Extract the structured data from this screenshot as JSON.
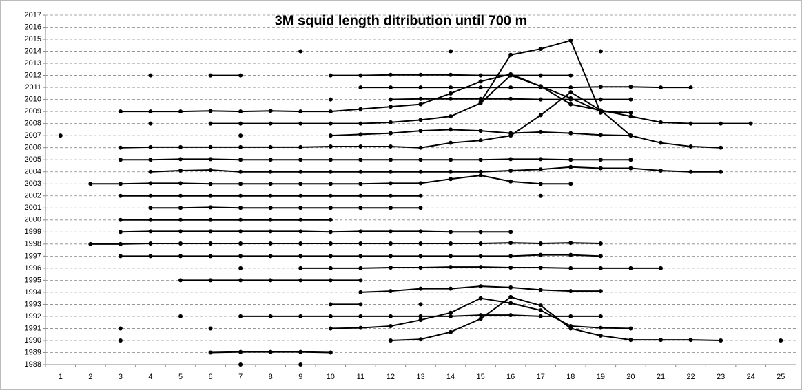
{
  "chart_data": {
    "type": "line",
    "title": "3M squid length ditribution until 700 m",
    "categories": [
      1,
      2,
      3,
      4,
      5,
      6,
      7,
      8,
      9,
      10,
      11,
      12,
      13,
      14,
      15,
      16,
      17,
      18,
      19,
      20,
      21,
      22,
      23,
      24,
      25
    ],
    "color": "#000000",
    "grid": true,
    "ylim": [
      1988,
      2017
    ],
    "yticks": [
      1988,
      1989,
      1990,
      1991,
      1992,
      1993,
      1994,
      1995,
      1996,
      1997,
      1998,
      1999,
      2000,
      2001,
      2002,
      2003,
      2004,
      2005,
      2006,
      2007,
      2008,
      2009,
      2010,
      2011,
      2012,
      2013,
      2014,
      2015,
      2016,
      2017
    ],
    "series": [
      {
        "values": [
          null,
          null,
          null,
          null,
          null,
          null,
          1988,
          null,
          1988,
          null,
          null,
          null,
          null,
          null,
          null,
          null,
          null,
          null,
          null,
          null,
          null,
          null,
          null,
          null,
          null
        ]
      },
      {
        "values": [
          null,
          null,
          null,
          null,
          null,
          1989,
          1989.05,
          1989.05,
          1989.05,
          1989,
          null,
          null,
          null,
          null,
          null,
          null,
          null,
          null,
          null,
          null,
          null,
          null,
          null,
          null,
          null
        ]
      },
      {
        "values": [
          null,
          null,
          1990,
          null,
          null,
          null,
          null,
          null,
          null,
          null,
          null,
          1990,
          1990.1,
          1990.7,
          1991.8,
          1993.6,
          1992.9,
          1991,
          1990.4,
          1990.05,
          1990.05,
          1990.05,
          1990,
          null,
          1990
        ]
      },
      {
        "values": [
          null,
          null,
          1991,
          null,
          null,
          1991,
          null,
          null,
          null,
          1991,
          1991.05,
          1991.2,
          1991.7,
          1992.3,
          1993.5,
          1993.1,
          1992.5,
          1991.2,
          1991.05,
          1991,
          null,
          null,
          null,
          null,
          null
        ]
      },
      {
        "values": [
          null,
          null,
          null,
          null,
          1992,
          null,
          1992,
          1992,
          1992,
          1992,
          1992,
          1992,
          1992,
          1992,
          1992.1,
          1992.1,
          1992,
          1992,
          1992,
          null,
          null,
          null,
          null,
          null,
          null
        ]
      },
      {
        "values": [
          null,
          null,
          null,
          null,
          null,
          null,
          null,
          null,
          null,
          1993,
          1993,
          null,
          1993,
          null,
          null,
          null,
          null,
          null,
          null,
          null,
          null,
          null,
          null,
          null,
          null
        ]
      },
      {
        "values": [
          null,
          null,
          null,
          null,
          null,
          null,
          null,
          null,
          null,
          null,
          1994,
          1994.1,
          1994.3,
          1994.3,
          1994.5,
          1994.4,
          1994.2,
          1994.1,
          1994.1,
          null,
          null,
          null,
          null,
          null,
          null
        ]
      },
      {
        "values": [
          null,
          null,
          null,
          null,
          1995,
          1995,
          1995,
          1995,
          1995,
          1995,
          1995,
          null,
          null,
          null,
          null,
          null,
          null,
          null,
          null,
          null,
          null,
          null,
          null,
          null,
          null
        ]
      },
      {
        "values": [
          null,
          null,
          null,
          null,
          null,
          null,
          1996,
          null,
          1996,
          1996,
          1996,
          1996.05,
          1996.05,
          1996.1,
          1996.1,
          1996.05,
          1996.05,
          1996,
          1996,
          1996,
          1996,
          null,
          null,
          null,
          null
        ]
      },
      {
        "values": [
          null,
          null,
          1997,
          1997,
          1997,
          1997,
          1997,
          1997,
          1997,
          1997,
          1997,
          1997,
          1997,
          1997,
          1997,
          1997,
          1997.1,
          1997.1,
          1997,
          null,
          null,
          null,
          null,
          null,
          null
        ]
      },
      {
        "values": [
          null,
          1998,
          1998,
          1998.05,
          1998.05,
          1998.05,
          1998.05,
          1998.05,
          1998.05,
          1998.05,
          1998.05,
          1998.05,
          1998.05,
          1998.05,
          1998.05,
          1998.1,
          1998.05,
          1998.1,
          1998.05,
          null,
          null,
          null,
          null,
          null,
          null
        ]
      },
      {
        "values": [
          null,
          null,
          1999,
          1999.05,
          1999.05,
          1999.05,
          1999.05,
          1999.05,
          1999.05,
          1999,
          1999.05,
          1999.05,
          1999.05,
          1999,
          1999,
          1999,
          null,
          null,
          null,
          null,
          null,
          null,
          null,
          null,
          null
        ]
      },
      {
        "values": [
          null,
          null,
          2000,
          2000,
          2000,
          2000,
          2000,
          2000,
          2000,
          2000,
          null,
          null,
          null,
          null,
          null,
          null,
          null,
          null,
          null,
          null,
          null,
          null,
          null,
          null,
          null
        ]
      },
      {
        "values": [
          null,
          null,
          null,
          2001,
          2001,
          2001.05,
          2001,
          2001,
          2001,
          2001,
          2001,
          2001,
          2001,
          null,
          null,
          null,
          null,
          null,
          null,
          null,
          null,
          null,
          null,
          null,
          null
        ]
      },
      {
        "values": [
          null,
          null,
          2002,
          2002,
          2002,
          2002,
          2002,
          2002,
          2002,
          2002,
          2002,
          2002,
          2002,
          null,
          null,
          null,
          2002,
          null,
          null,
          null,
          null,
          null,
          null,
          null,
          null
        ]
      },
      {
        "values": [
          null,
          2003,
          2003,
          2003.05,
          2003.05,
          2003,
          2003,
          2003,
          2003,
          2003,
          2003,
          2003.05,
          2003.05,
          2003.4,
          2003.7,
          2003.2,
          2003,
          2003,
          null,
          null,
          null,
          null,
          null,
          null,
          null
        ]
      },
      {
        "values": [
          null,
          null,
          null,
          2004,
          2004.1,
          2004.15,
          2004,
          2004,
          2004,
          2004,
          2004,
          2004,
          2004,
          2004,
          2004,
          2004.1,
          2004.2,
          2004.4,
          2004.3,
          2004.3,
          2004.1,
          2004,
          2004,
          null,
          null
        ]
      },
      {
        "values": [
          null,
          null,
          2005,
          2005,
          2005.05,
          2005.05,
          2005,
          2005,
          2005,
          2005,
          2005,
          2005,
          2005,
          2005,
          2005,
          2005.05,
          2005.05,
          2005,
          2005,
          2005,
          null,
          null,
          null,
          null,
          null
        ]
      },
      {
        "values": [
          null,
          null,
          2006,
          2006.05,
          2006.05,
          2006.05,
          2006.05,
          2006.05,
          2006.05,
          2006.1,
          2006.1,
          2006.1,
          2006,
          2006.4,
          2006.6,
          2007,
          2008.7,
          2010.6,
          2009.1,
          2007,
          2006.4,
          2006.1,
          2006,
          null,
          null
        ]
      },
      {
        "values": [
          2007,
          null,
          null,
          null,
          null,
          null,
          2007,
          null,
          null,
          2007,
          2007.1,
          2007.2,
          2007.4,
          2007.5,
          2007.4,
          2007.2,
          2007.3,
          2007.2,
          2007.05,
          2007,
          null,
          null,
          null,
          null,
          null
        ]
      },
      {
        "values": [
          null,
          null,
          null,
          2008,
          null,
          2008,
          2008,
          2008,
          2008,
          2008,
          2008,
          2008.1,
          2008.3,
          2008.6,
          2009.7,
          2012,
          2011.1,
          2009.6,
          2009.1,
          2008.6,
          2008.1,
          2008,
          2008,
          2008,
          null
        ]
      },
      {
        "values": [
          null,
          null,
          2009,
          2009,
          2009,
          2009.05,
          2009,
          2009.05,
          2009,
          2009,
          2009.2,
          2009.4,
          2009.6,
          2010.5,
          2011.5,
          2012.1,
          2011.1,
          2010.1,
          2009,
          2008.9,
          null,
          null,
          null,
          null,
          null
        ]
      },
      {
        "values": [
          null,
          null,
          null,
          null,
          null,
          null,
          null,
          null,
          null,
          2010,
          null,
          2010,
          2010.05,
          2010.05,
          2010.05,
          2010.05,
          2010,
          2010,
          2010,
          2010,
          null,
          null,
          null,
          null,
          null
        ]
      },
      {
        "values": [
          null,
          null,
          null,
          null,
          null,
          null,
          null,
          null,
          null,
          null,
          2011,
          2011,
          2011,
          2011,
          2011,
          2011,
          2011,
          2011,
          2011.05,
          2011.05,
          2011,
          2011,
          null,
          null,
          null
        ]
      },
      {
        "values": [
          null,
          null,
          null,
          2012,
          null,
          2012,
          2012,
          null,
          null,
          2012,
          2012,
          2012.05,
          2012.05,
          2012.05,
          2012,
          2012,
          2012,
          2012,
          null,
          null,
          null,
          null,
          null,
          null,
          null
        ]
      },
      {
        "values": [
          null,
          null,
          null,
          null,
          null,
          null,
          null,
          null,
          null,
          null,
          null,
          null,
          null,
          null,
          2009.8,
          2013.7,
          2014.2,
          2014.9,
          2008.9,
          null,
          null,
          null,
          null,
          null,
          null
        ]
      },
      {
        "values": [
          null,
          null,
          null,
          null,
          null,
          null,
          null,
          null,
          2014,
          null,
          null,
          null,
          null,
          2014,
          null,
          null,
          null,
          null,
          2014,
          null,
          null,
          null,
          null,
          null,
          null
        ]
      }
    ]
  }
}
